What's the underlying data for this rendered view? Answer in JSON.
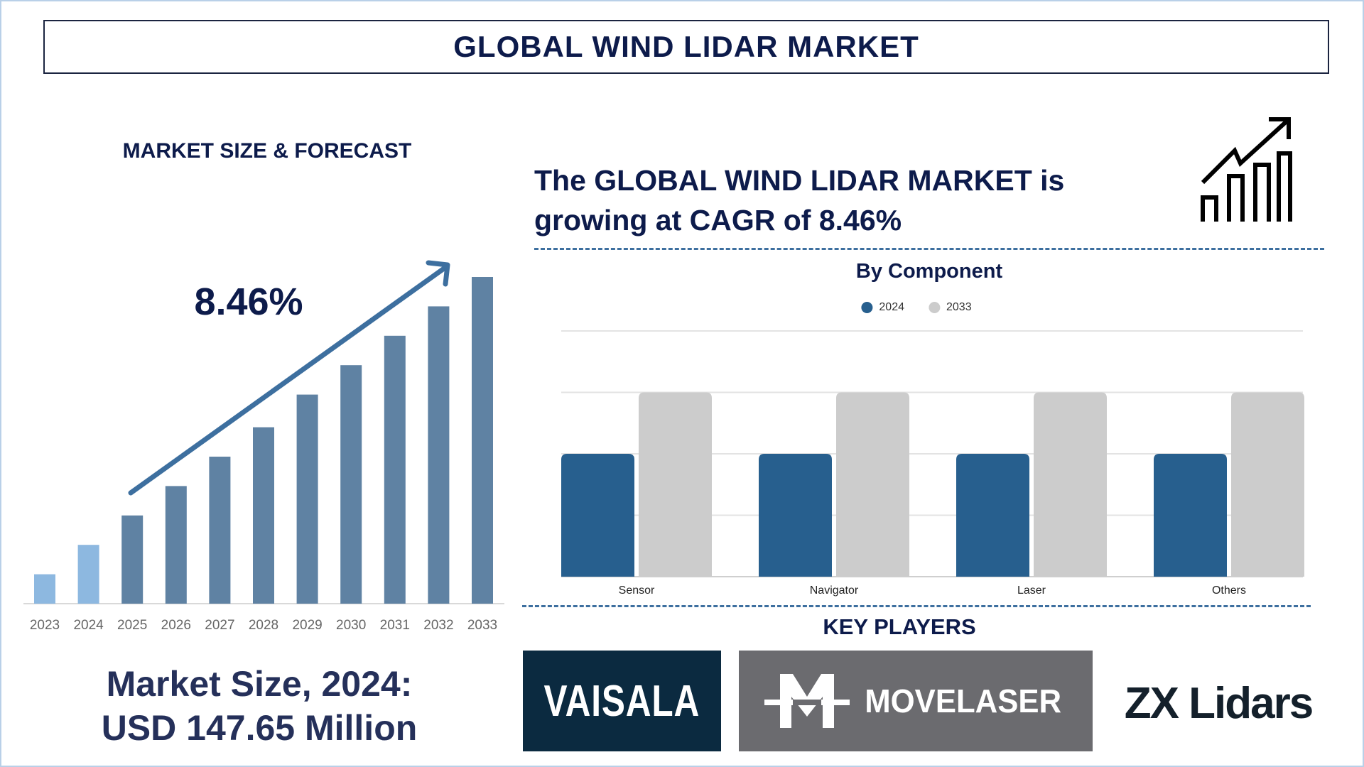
{
  "header": {
    "title": "GLOBAL WIND LIDAR MARKET"
  },
  "left_panel": {
    "section_title": "MARKET SIZE & FORECAST",
    "cagr_label": "8.46%",
    "market_size_line1": "Market Size, 2024:",
    "market_size_line2": "USD 147.65 Million"
  },
  "headline": {
    "line1": "The GLOBAL WIND LIDAR MARKET is",
    "line2": "growing at CAGR of 8.46%",
    "icon": "growth-chart-arrow-icon"
  },
  "key_players": {
    "title": "KEY PLAYERS",
    "logos": [
      {
        "name": "VAISALA",
        "bg": "#0b2a40",
        "fg": "#ffffff"
      },
      {
        "name": "MOVELASER",
        "bg": "#6b6b6f",
        "fg": "#ffffff"
      },
      {
        "name": "ZX Lidars",
        "bg": "#ffffff",
        "fg": "#14202b"
      }
    ]
  },
  "chart_data": [
    {
      "type": "bar",
      "title": "",
      "categories": [
        "2023",
        "2024",
        "2025",
        "2026",
        "2027",
        "2028",
        "2029",
        "2030",
        "2031",
        "2032",
        "2033"
      ],
      "values": [
        9,
        18,
        27,
        36,
        45,
        54,
        64,
        73,
        82,
        91,
        100
      ],
      "value_note": "relative heights, no axis values printed",
      "colors": {
        "historical": "#8db8e0",
        "forecast": "#5f82a3",
        "arrow": "#3d6f9f"
      },
      "grid": false
    },
    {
      "type": "bar",
      "title": "By Component",
      "categories": [
        "Sensor",
        "Navigator",
        "Laser",
        "Others"
      ],
      "series": [
        {
          "name": "2024",
          "values": [
            2,
            2,
            2,
            2
          ],
          "color": "#275f8e"
        },
        {
          "name": "2033",
          "values": [
            3,
            3,
            3,
            3
          ],
          "color": "#cccccc"
        }
      ],
      "ylim": [
        0,
        4
      ],
      "grid": true,
      "legend": "top-center"
    }
  ]
}
